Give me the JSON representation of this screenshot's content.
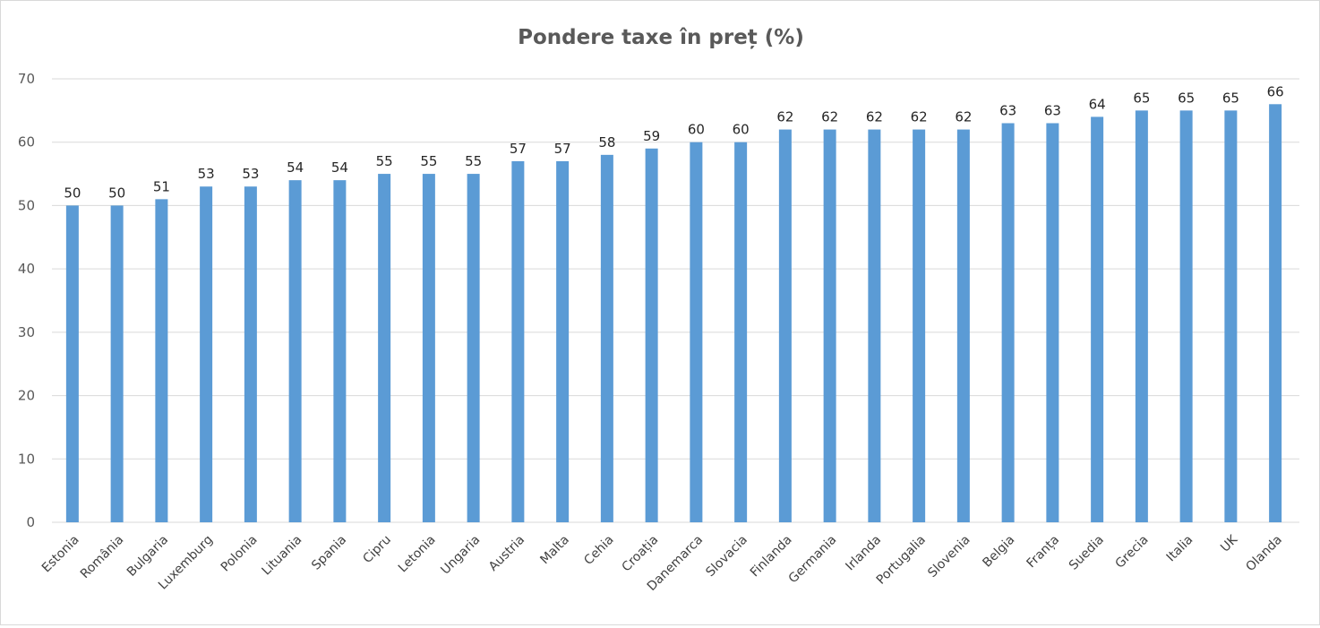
{
  "chart_data": {
    "type": "bar",
    "title": "Pondere taxe în preț (%)",
    "xlabel": "",
    "ylabel": "",
    "ylim": [
      0,
      70
    ],
    "yticks": [
      "0",
      "10",
      "20",
      "30",
      "40",
      "50",
      "60",
      "70"
    ],
    "grid": true,
    "legend": "none",
    "bar_color": "#5b9bd5",
    "categories": [
      "Estonia",
      "România",
      "Bulgaria",
      "Luxemburg",
      "Polonia",
      "Lituania",
      "Spania",
      "Cipru",
      "Letonia",
      "Ungaria",
      "Austria",
      "Malta",
      "Cehia",
      "Croația",
      "Danemarca",
      "Slovacia",
      "Finlanda",
      "Germania",
      "Irlanda",
      "Portugalia",
      "Slovenia",
      "Belgia",
      "Franța",
      "Suedia",
      "Grecia",
      "Italia",
      "UK",
      "Olanda"
    ],
    "values": [
      50,
      50,
      51,
      53,
      53,
      54,
      54,
      55,
      55,
      55,
      57,
      57,
      58,
      59,
      60,
      60,
      62,
      62,
      62,
      62,
      62,
      63,
      63,
      64,
      65,
      65,
      65,
      66
    ]
  }
}
